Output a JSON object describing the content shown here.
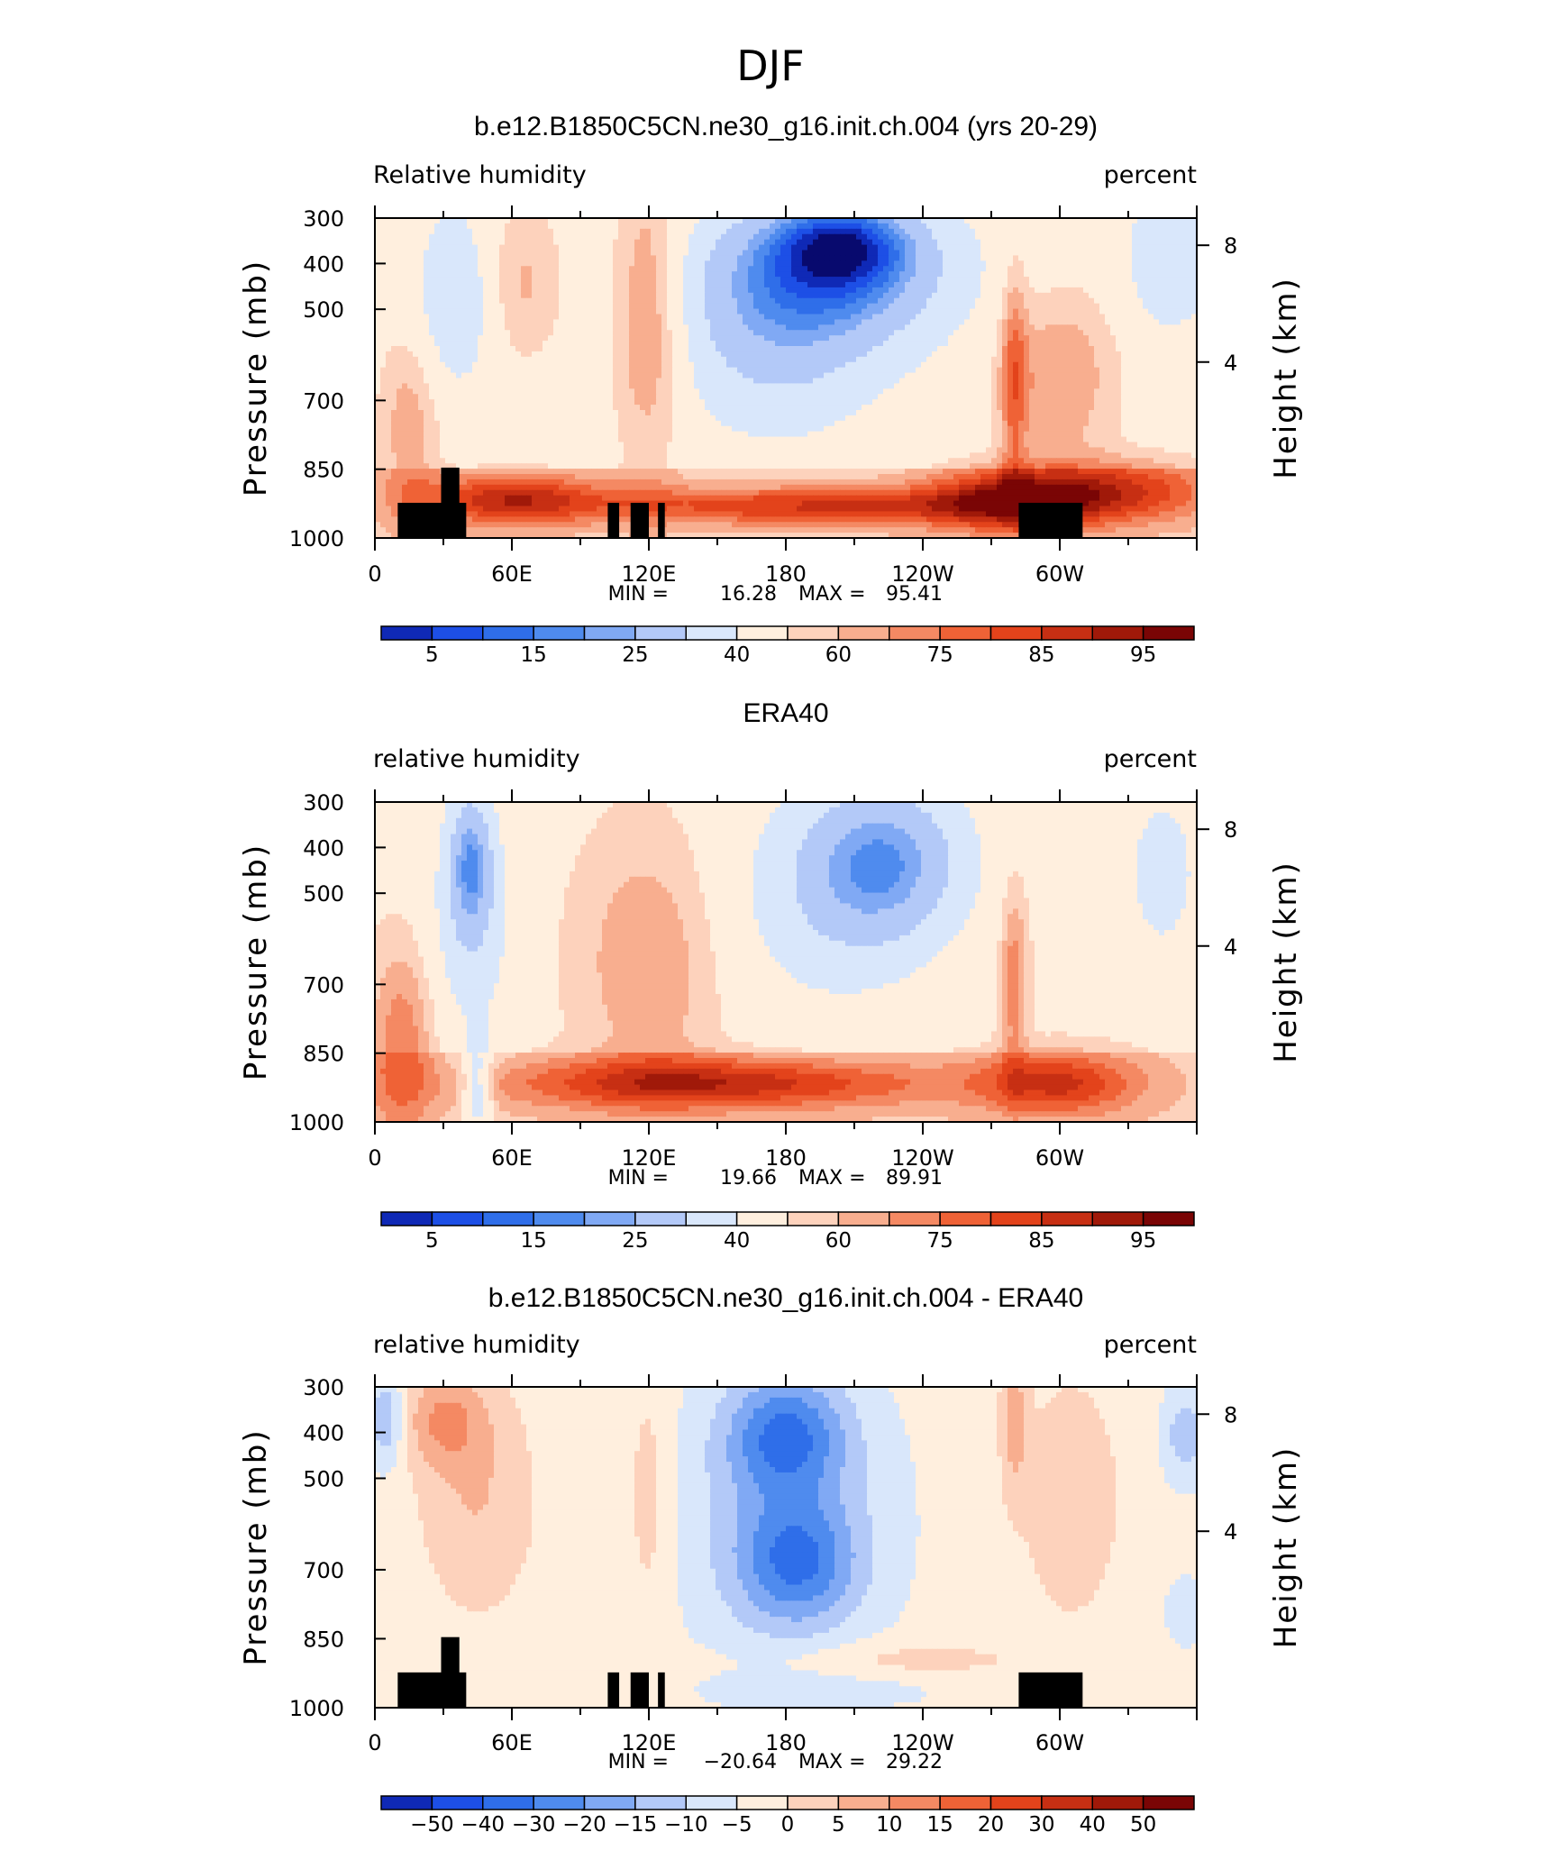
{
  "figure": {
    "title": "DJF"
  },
  "colors": {
    "rh_levels": [
      "#080a6e",
      "#0f29b6",
      "#1d4fe6",
      "#2f6ee9",
      "#4f8bee",
      "#80a9f4",
      "#b3c9f8",
      "#d9e7fb",
      "#ffefde",
      "#fdd2bc",
      "#f8ae8f",
      "#f48963",
      "#ef6236",
      "#e3431b",
      "#c72f13",
      "#a01909",
      "#7a0505"
    ],
    "diff_levels": [
      "#080a6e",
      "#0f29b6",
      "#1d4fe6",
      "#2f6ee9",
      "#4f8bee",
      "#80a9f4",
      "#b3c9f8",
      "#d9e7fb",
      "#ffefde",
      "#fdd2bc",
      "#f8ae8f",
      "#f48963",
      "#ef6236",
      "#e3431b",
      "#c72f13",
      "#a01909",
      "#7a0505"
    ]
  },
  "chart_data": [
    {
      "type": "heatmap",
      "title": "b.e12.B1850C5CN.ne30_g16.init.ch.004 (yrs 20-29)",
      "left_label": "Relative humidity",
      "right_label": "percent",
      "xlabel": "",
      "ylabel": "Pressure (mb)",
      "ylabel_right": "Height (km)",
      "x_ticks": [
        "0",
        "60E",
        "120E",
        "180",
        "120W",
        "60W"
      ],
      "xlim": [
        0,
        360
      ],
      "y_ticks": [
        "300",
        "400",
        "500",
        "700",
        "850",
        "1000"
      ],
      "ylim_mb": [
        1000,
        300
      ],
      "height_ticks": [
        "8",
        "4"
      ],
      "stats": {
        "min_label": "MIN =",
        "min": "16.28",
        "max_label": "MAX =",
        "max": "95.41"
      },
      "colorbar_labels": [
        "5",
        "15",
        "25",
        "40",
        "60",
        "75",
        "85",
        "95"
      ],
      "colorbar_levels": [
        5,
        10,
        15,
        20,
        25,
        30,
        40,
        50,
        60,
        65,
        70,
        75,
        80,
        85,
        90,
        95
      ],
      "field": "model",
      "topography": true
    },
    {
      "type": "heatmap",
      "title": "ERA40",
      "left_label": "relative humidity",
      "right_label": "percent",
      "xlabel": "",
      "ylabel": "Pressure (mb)",
      "ylabel_right": "Height (km)",
      "x_ticks": [
        "0",
        "60E",
        "120E",
        "180",
        "120W",
        "60W"
      ],
      "xlim": [
        0,
        360
      ],
      "y_ticks": [
        "300",
        "400",
        "500",
        "700",
        "850",
        "1000"
      ],
      "ylim_mb": [
        1000,
        300
      ],
      "height_ticks": [
        "8",
        "4"
      ],
      "stats": {
        "min_label": "MIN =",
        "min": "19.66",
        "max_label": "MAX =",
        "max": "89.91"
      },
      "colorbar_labels": [
        "5",
        "15",
        "25",
        "40",
        "60",
        "75",
        "85",
        "95"
      ],
      "colorbar_levels": [
        5,
        10,
        15,
        20,
        25,
        30,
        40,
        50,
        60,
        65,
        70,
        75,
        80,
        85,
        90,
        95
      ],
      "field": "obs",
      "topography": false
    },
    {
      "type": "heatmap",
      "title": "b.e12.B1850C5CN.ne30_g16.init.ch.004 - ERA40",
      "left_label": "relative humidity",
      "right_label": "percent",
      "xlabel": "",
      "ylabel": "Pressure (mb)",
      "ylabel_right": "Height (km)",
      "x_ticks": [
        "0",
        "60E",
        "120E",
        "180",
        "120W",
        "60W"
      ],
      "xlim": [
        0,
        360
      ],
      "y_ticks": [
        "300",
        "400",
        "500",
        "700",
        "850",
        "1000"
      ],
      "ylim_mb": [
        1000,
        300
      ],
      "height_ticks": [
        "8",
        "4"
      ],
      "stats": {
        "min_label": "MIN =",
        "min": "−20.64",
        "max_label": "MAX =",
        "max": "29.22"
      },
      "colorbar_labels": [
        "−50",
        "−40",
        "−30",
        "−20",
        "−15",
        "−10",
        "−5",
        "0",
        "5",
        "10",
        "15",
        "20",
        "30",
        "40",
        "50"
      ],
      "colorbar_levels": [
        -50,
        -40,
        -30,
        -20,
        -15,
        -10,
        -5,
        0,
        5,
        10,
        15,
        20,
        30,
        40,
        50
      ],
      "field": "diff",
      "topography": true
    }
  ]
}
